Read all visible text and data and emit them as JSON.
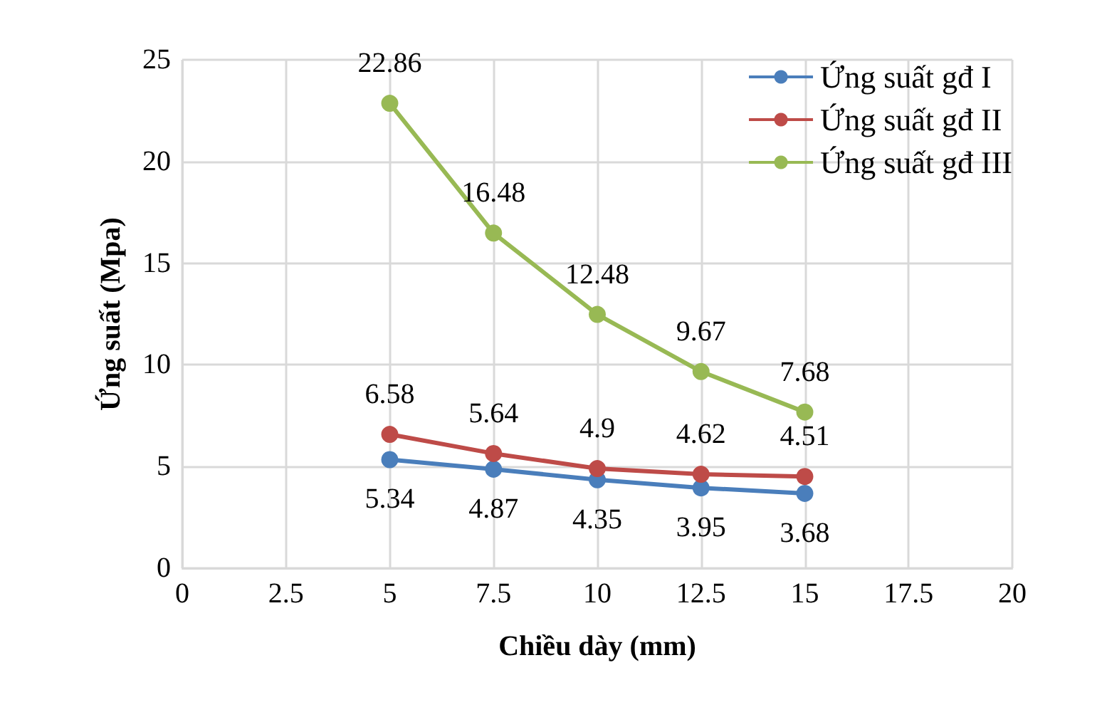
{
  "chart_data": {
    "type": "line",
    "xlabel": "Chiều dày (mm)",
    "ylabel": "Ứng suất (Mpa)",
    "x": [
      5,
      7.5,
      10,
      12.5,
      15
    ],
    "series": [
      {
        "name": "Ứng suất gđ I",
        "color": "#4a7ebb",
        "values": [
          5.34,
          4.87,
          4.35,
          3.95,
          3.68
        ]
      },
      {
        "name": "Ứng suất gđ II",
        "color": "#be4b48",
        "values": [
          6.58,
          5.64,
          4.9,
          4.62,
          4.51
        ]
      },
      {
        "name": "Ứng suất gđ III",
        "color": "#98b954",
        "values": [
          22.86,
          16.48,
          12.48,
          9.67,
          7.68
        ]
      }
    ],
    "xlim": [
      0,
      20
    ],
    "xticks": [
      0,
      2.5,
      5,
      7.5,
      10,
      12.5,
      15,
      17.5,
      20
    ],
    "ylim": [
      0,
      25
    ],
    "yticks": [
      0,
      5,
      10,
      15,
      20,
      25
    ],
    "grid": true,
    "legend": "top right",
    "marker": "circle",
    "line_style": "solid",
    "data_labels": true
  }
}
